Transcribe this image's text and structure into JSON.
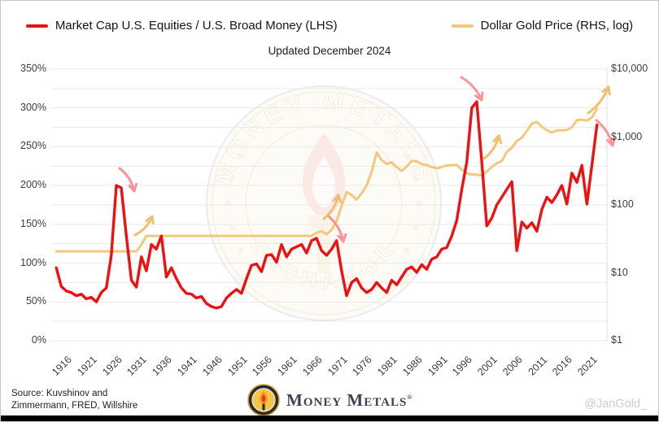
{
  "chart_data": {
    "type": "line",
    "title": "Updated December 2024",
    "x_min": 1915,
    "x_max": 2026,
    "x_ticks": [
      1916,
      1921,
      1926,
      1931,
      1936,
      1941,
      1946,
      1951,
      1956,
      1961,
      1966,
      1971,
      1976,
      1981,
      1986,
      1991,
      1996,
      2001,
      2006,
      2011,
      2016,
      2021
    ],
    "left_axis": {
      "min": 0,
      "max": 350,
      "unit": "%",
      "grid_step": 25,
      "ticks": [
        0,
        50,
        100,
        150,
        200,
        250,
        300,
        350
      ]
    },
    "right_axis": {
      "min": 1,
      "max": 10000,
      "scale": "log",
      "unit": "$",
      "ticks": [
        1,
        10,
        100,
        1000,
        10000
      ]
    },
    "legend_position": "top",
    "grid": "horizontal",
    "series": [
      {
        "id": "equities-money-ratio",
        "name": "Market Cap U.S. Equities / U.S. Broad Money (LHS)",
        "axis": "left",
        "color": "#ee1111",
        "width": 3.4,
        "z": 1,
        "start_year": 1916,
        "values": [
          94,
          70,
          64,
          62,
          58,
          60,
          54,
          56,
          50,
          62,
          68,
          110,
          200,
          197,
          135,
          78,
          69,
          108,
          90,
          124,
          118,
          135,
          82,
          94,
          80,
          68,
          61,
          60,
          55,
          57,
          48,
          44,
          42,
          44,
          55,
          61,
          66,
          61,
          80,
          97,
          99,
          89,
          110,
          111,
          101,
          124,
          108,
          118,
          121,
          124,
          113,
          129,
          132,
          116,
          110,
          118,
          129,
          90,
          58,
          75,
          80,
          68,
          62,
          66,
          75,
          68,
          62,
          78,
          72,
          82,
          92,
          95,
          88,
          98,
          92,
          105,
          108,
          118,
          120,
          135,
          155,
          195,
          230,
          300,
          308,
          230,
          148,
          158,
          175,
          185,
          195,
          205,
          116,
          153,
          145,
          152,
          141,
          169,
          185,
          178,
          188,
          200,
          176,
          216,
          204,
          226,
          176,
          226,
          278
        ]
      },
      {
        "id": "gold-price",
        "name": "Dollar Gold Price (RHS, log)",
        "axis": "right",
        "color": "#f3c87d",
        "width": 3,
        "z": 0,
        "start_year": 1916,
        "values": [
          20.7,
          20.7,
          20.7,
          20.7,
          20.7,
          20.7,
          20.7,
          20.7,
          20.7,
          20.7,
          20.7,
          20.7,
          20.7,
          20.7,
          20.7,
          20.7,
          20.7,
          26,
          35,
          35,
          35,
          35,
          35,
          35,
          35,
          35,
          35,
          35,
          35,
          35,
          35,
          35,
          35,
          35,
          35,
          35,
          35,
          35,
          35,
          35,
          35,
          35,
          35,
          35,
          35,
          35,
          35,
          35,
          35,
          35,
          35,
          35,
          39,
          41,
          37,
          43,
          58,
          97,
          155,
          140,
          120,
          148,
          193,
          307,
          590,
          460,
          400,
          424,
          360,
          317,
          368,
          446,
          437,
          400,
          384,
          362,
          344,
          360,
          384,
          384,
          388,
          331,
          294,
          279,
          279,
          271,
          310,
          363,
          410,
          445,
          603,
          695,
          872,
          972,
          1225,
          1570,
          1670,
          1410,
          1265,
          1160,
          1250,
          1257,
          1268,
          1393,
          1770,
          1800,
          1745,
          1940,
          2610
        ]
      }
    ],
    "annotations": [
      {
        "name": "crash-1929",
        "color": "#f59598",
        "x1": 146,
        "y1": 206,
        "x2": 164,
        "y2": 234,
        "bend": 6
      },
      {
        "name": "gold-step-1934",
        "color": "#eec06e",
        "x1": 165,
        "y1": 288,
        "x2": 186,
        "y2": 265,
        "bend": -6
      },
      {
        "name": "gold-rise-1971",
        "color": "#eec06e",
        "x1": 397,
        "y1": 268,
        "x2": 415,
        "y2": 239,
        "bend": -6
      },
      {
        "name": "crash-1973",
        "color": "#f59598",
        "x1": 403,
        "y1": 265,
        "x2": 421,
        "y2": 296,
        "bend": 6
      },
      {
        "name": "crash-2000",
        "color": "#f59598",
        "x1": 566,
        "y1": 94,
        "x2": 591,
        "y2": 122,
        "bend": 6
      },
      {
        "name": "gold-rise-2000s",
        "color": "#eec06e",
        "x1": 594,
        "y1": 194,
        "x2": 612,
        "y2": 166,
        "bend": -6
      },
      {
        "name": "gold-rise-2024",
        "color": "#eec06e",
        "x1": 722,
        "y1": 138,
        "x2": 747,
        "y2": 106,
        "bend": -6
      },
      {
        "name": "crash-2024",
        "color": "#f59598",
        "x1": 732,
        "y1": 147,
        "x2": 752,
        "y2": 178,
        "bend": 6
      }
    ]
  },
  "watermark": {
    "arc_top": "MONEY METALS",
    "arc_bottom": "EXCHANGE"
  },
  "footer": {
    "source_line1": "Source: Kuvshinov and",
    "source_line2": "Zimmermann, FRED, Willshire",
    "logo_text": "Money Metals",
    "logo_reg": "®",
    "handle": "@JanGold_"
  }
}
